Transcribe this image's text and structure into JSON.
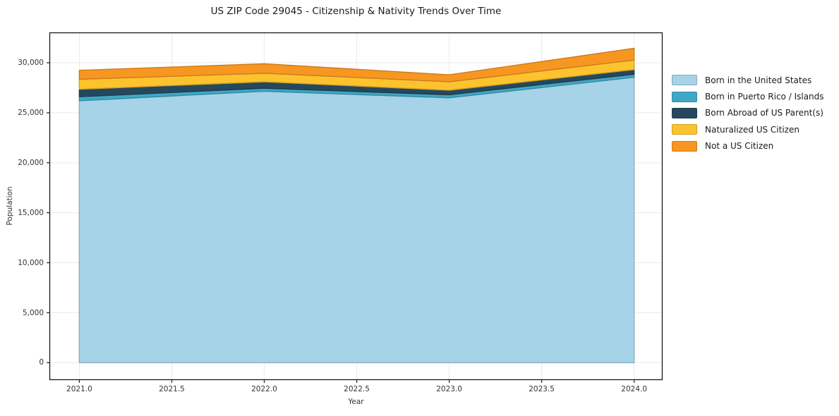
{
  "title": "US ZIP Code 29045 - Citizenship & Nativity Trends Over Time",
  "chart_data": {
    "type": "area",
    "stacked": true,
    "title": "US ZIP Code 29045 - Citizenship & Nativity Trends Over Time",
    "xlabel": "Year",
    "ylabel": "Population",
    "x": [
      2021,
      2022,
      2023,
      2024
    ],
    "series": [
      {
        "name": "Born in the United States",
        "color": "#a6d3e7",
        "values": [
          26200,
          27150,
          26500,
          28550
        ]
      },
      {
        "name": "Born in Puerto Rico / Islands",
        "color": "#3fa8c6",
        "values": [
          400,
          300,
          300,
          300
        ]
      },
      {
        "name": "Born Abroad of US Parent(s)",
        "color": "#26485e",
        "values": [
          750,
          650,
          450,
          470
        ]
      },
      {
        "name": "Naturalized US Citizen",
        "color": "#fdc32e",
        "values": [
          1000,
          850,
          850,
          950
        ]
      },
      {
        "name": "Not a US Citizen",
        "color": "#f79722",
        "values": [
          900,
          950,
          700,
          1180
        ]
      }
    ],
    "totals": [
      29250,
      29900,
      28800,
      31450
    ],
    "xlim": [
      2020.84,
      2024.152
    ],
    "ylim": [
      -1700,
      33000
    ],
    "grid": true,
    "legend_position": "right-outside",
    "xticks": [
      {
        "v": 2021.0,
        "label": "2021.0"
      },
      {
        "v": 2021.5,
        "label": "2021.5"
      },
      {
        "v": 2022.0,
        "label": "2022.0"
      },
      {
        "v": 2022.5,
        "label": "2022.5"
      },
      {
        "v": 2023.0,
        "label": "2023.0"
      },
      {
        "v": 2023.5,
        "label": "2023.5"
      },
      {
        "v": 2024.0,
        "label": "2024.0"
      }
    ],
    "yticks": [
      {
        "v": 0,
        "label": "0"
      },
      {
        "v": 5000,
        "label": "5,000"
      },
      {
        "v": 10000,
        "label": "10,000"
      },
      {
        "v": 15000,
        "label": "15,000"
      },
      {
        "v": 20000,
        "label": "20,000"
      },
      {
        "v": 25000,
        "label": "25,000"
      },
      {
        "v": 30000,
        "label": "30,000"
      }
    ]
  }
}
